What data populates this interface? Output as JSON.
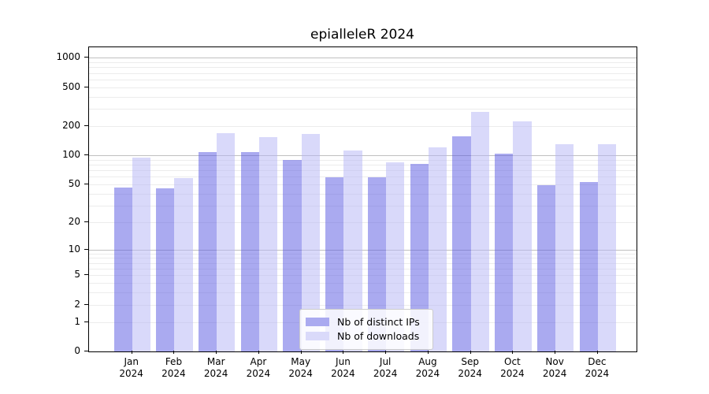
{
  "title": "epialleleR 2024",
  "colors": {
    "bar_ips_rgba": "rgba(85,85,225,0.5)",
    "bar_downloads_rgba": "rgba(180,180,246,0.5)",
    "legend_swatch_ips": "#aaaaf0",
    "legend_swatch_downloads": "#dadafa",
    "grid_minor": "#ececec",
    "grid_major": "#c0c0c0"
  },
  "chart_data": {
    "type": "bar",
    "title": "epialleleR 2024",
    "categories": [
      "Jan 2024",
      "Feb 2024",
      "Mar 2024",
      "Apr 2024",
      "May 2024",
      "Jun 2024",
      "Jul 2024",
      "Aug 2024",
      "Sep 2024",
      "Oct 2024",
      "Nov 2024",
      "Dec 2024"
    ],
    "series": [
      {
        "name": "Nb of distinct IPs",
        "values": [
          46,
          45,
          108,
          108,
          89,
          59,
          59,
          81,
          158,
          104,
          49,
          53
        ]
      },
      {
        "name": "Nb of downloads",
        "values": [
          95,
          58,
          168,
          154,
          166,
          112,
          85,
          121,
          280,
          224,
          130,
          130
        ]
      }
    ],
    "y_ticks": [
      0,
      1,
      2,
      5,
      10,
      20,
      50,
      100,
      200,
      500,
      1000
    ],
    "y_scale": "log10(1+x)",
    "ylim": [
      0,
      1400
    ],
    "xlabel": "",
    "ylabel": "",
    "grid": "horizontal",
    "legend_position": "inside-bottom-center"
  }
}
